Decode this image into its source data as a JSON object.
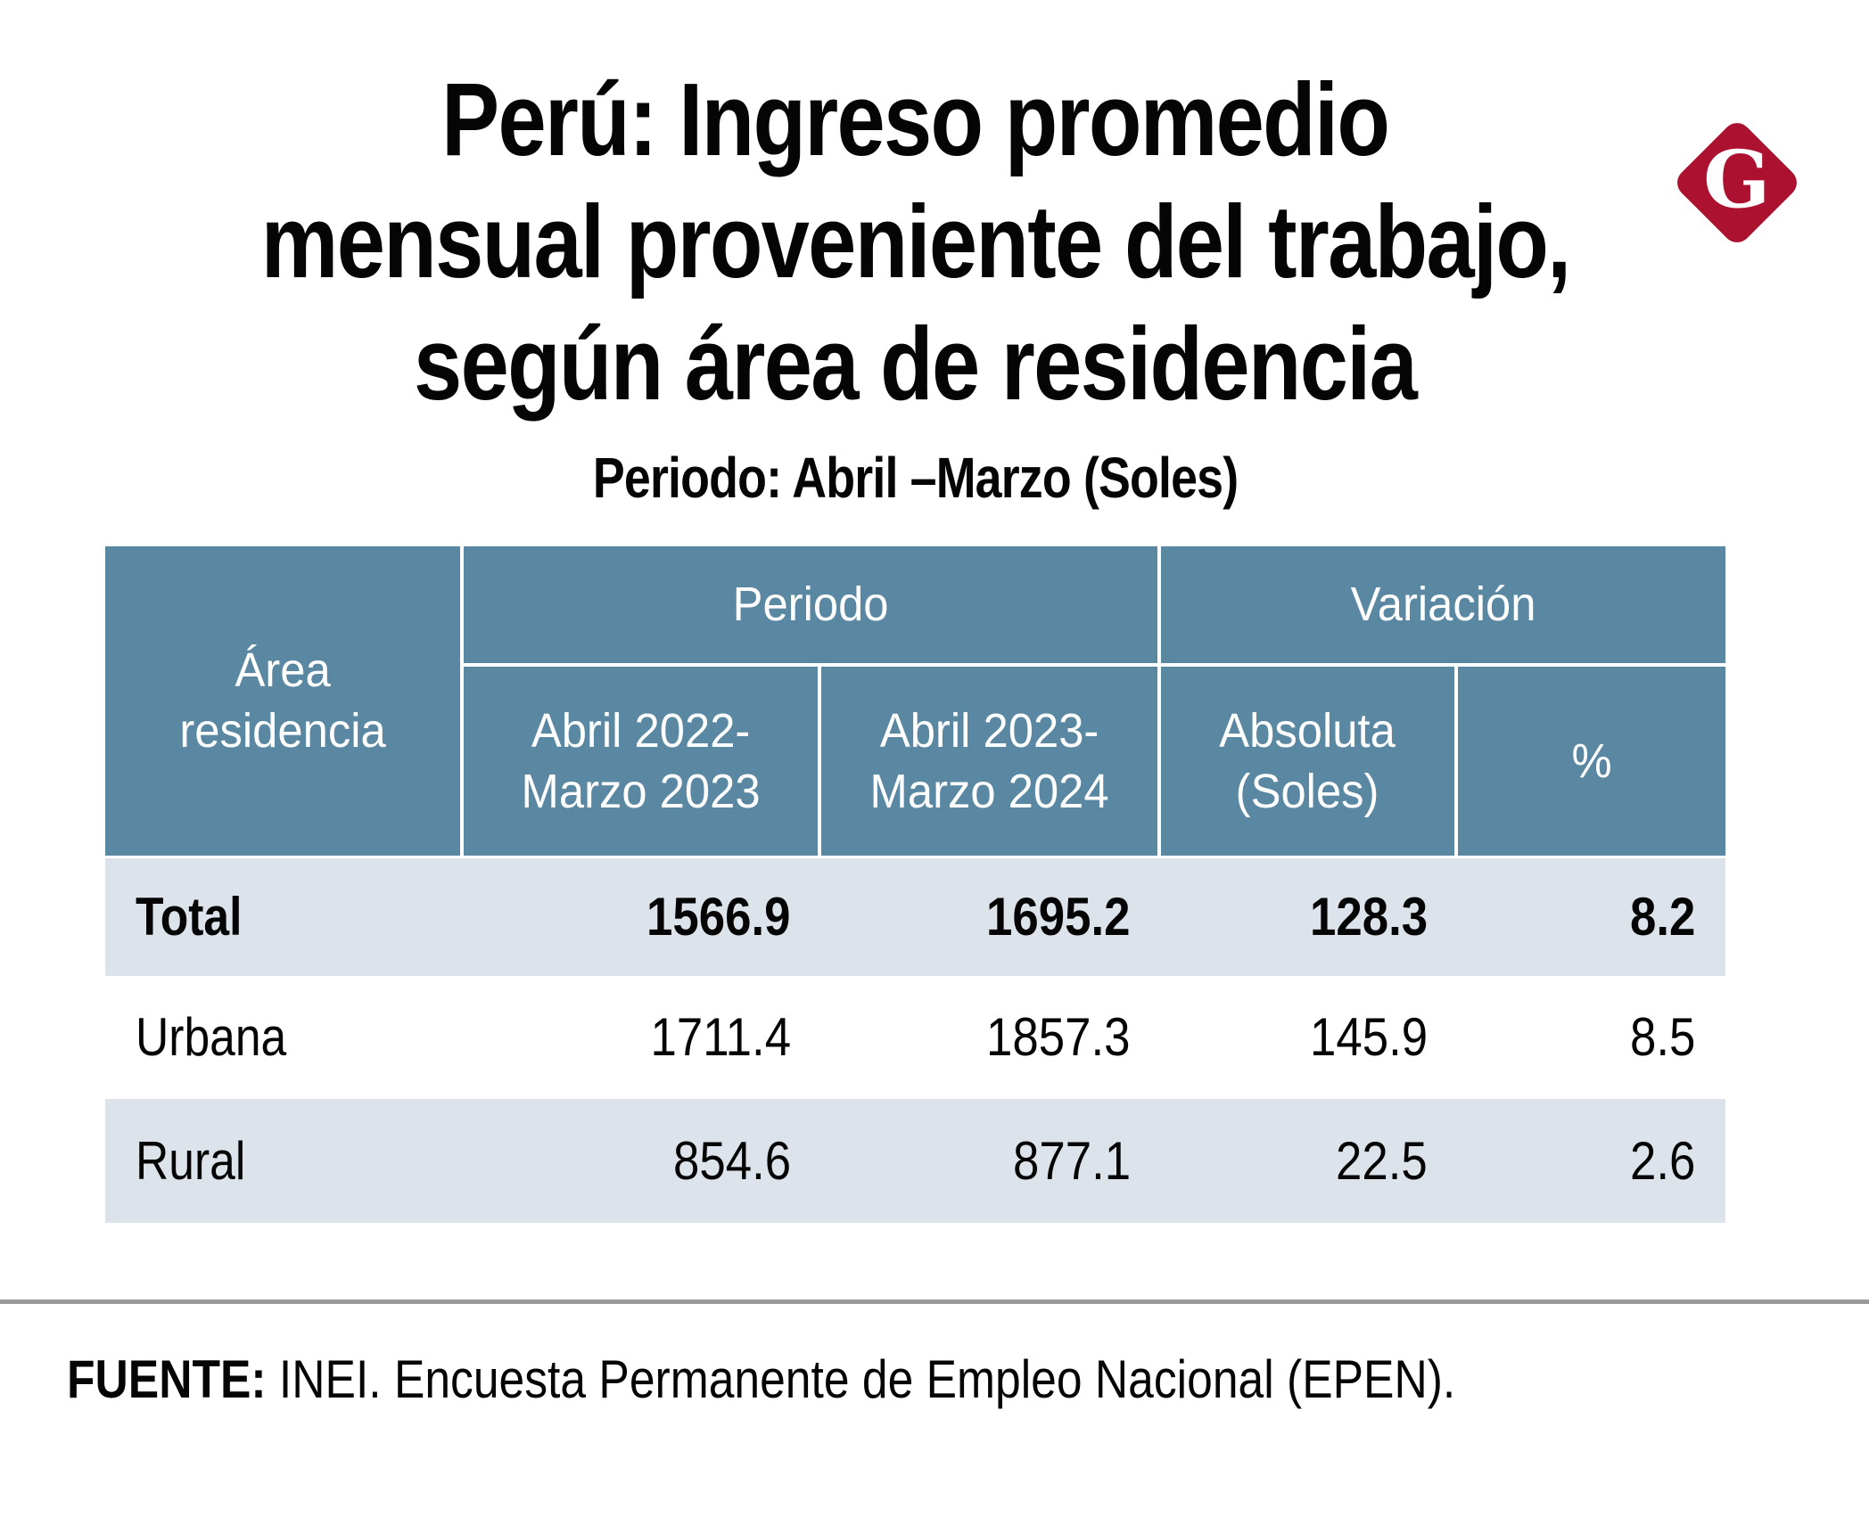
{
  "brand": {
    "logo_letter": "G",
    "logo_color": "#AC1230"
  },
  "title": {
    "line1": "Perú: Ingreso promedio",
    "line2": "mensual proveniente del trabajo,",
    "line3": "según área de residencia"
  },
  "subtitle": "Periodo: Abril –Marzo (Soles)",
  "table": {
    "area_header": "Área\nresidencia",
    "groups": {
      "period": "Periodo",
      "variation": "Variación"
    },
    "columns": {
      "c1": "Abril 2022-\nMarzo 2023",
      "c2": "Abril 2023-\nMarzo 2024",
      "c3": "Absoluta\n(Soles)",
      "c4": "%"
    },
    "rows": [
      {
        "label": "Total",
        "v1": "1566.9",
        "v2": "1695.2",
        "v3": "128.3",
        "v4": "8.2"
      },
      {
        "label": "Urbana",
        "v1": "1711.4",
        "v2": "1857.3",
        "v3": "145.9",
        "v4": "8.5"
      },
      {
        "label": "Rural",
        "v1": "854.6",
        "v2": "877.1",
        "v3": "22.5",
        "v4": "2.6"
      }
    ]
  },
  "source": {
    "label": "FUENTE:",
    "text": " INEI. Encuesta Permanente de Empleo Nacional (EPEN)."
  },
  "colors": {
    "header_bg": "#5A87A2",
    "row_alt_bg": "#DCE3EA",
    "divider": "#9A9A9A",
    "logo_red": "#AC1230"
  },
  "chart_data": {
    "type": "table",
    "title": "Perú: Ingreso promedio mensual proveniente del trabajo, según área de residencia",
    "subtitle": "Periodo: Abril –Marzo (Soles)",
    "columns": [
      "Área residencia",
      "Abril 2022-Marzo 2023",
      "Abril 2023-Marzo 2024",
      "Variación Absoluta (Soles)",
      "Variación %"
    ],
    "rows": [
      [
        "Total",
        1566.9,
        1695.2,
        128.3,
        8.2
      ],
      [
        "Urbana",
        1711.4,
        1857.3,
        145.9,
        8.5
      ],
      [
        "Rural",
        854.6,
        877.1,
        22.5,
        2.6
      ]
    ],
    "source": "FUENTE: INEI. Encuesta Permanente de Empleo Nacional (EPEN)."
  }
}
